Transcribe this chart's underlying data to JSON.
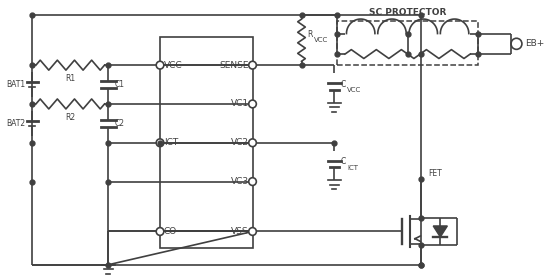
{
  "bg_color": "#ffffff",
  "line_color": "#404040",
  "line_width": 1.2,
  "dot_size": 3.5,
  "fig_width": 5.5,
  "fig_height": 2.8,
  "dpi": 100,
  "sc_protector_label": "SC PROTECTOR",
  "eb_label": "EB+",
  "rvcc_label": "R",
  "rvcc_sub": "VCC",
  "cvcc_label": "C",
  "cvcc_sub": "VCC",
  "cict_label": "C",
  "cict_sub": "ICT",
  "fet_label": "FET",
  "bat1_label": "BAT1",
  "bat2_label": "BAT2",
  "r1_label": "R1",
  "r2_label": "R2",
  "c1_label": "C1",
  "c2_label": "C2",
  "sense_label": "SENSE",
  "vc1_label": "VC1",
  "vc2_label": "VC2",
  "vc3_label": "VC3",
  "vss_label": "VSS",
  "vcc_label": "VCC",
  "ict_label": "ICT",
  "co_label": "CO"
}
